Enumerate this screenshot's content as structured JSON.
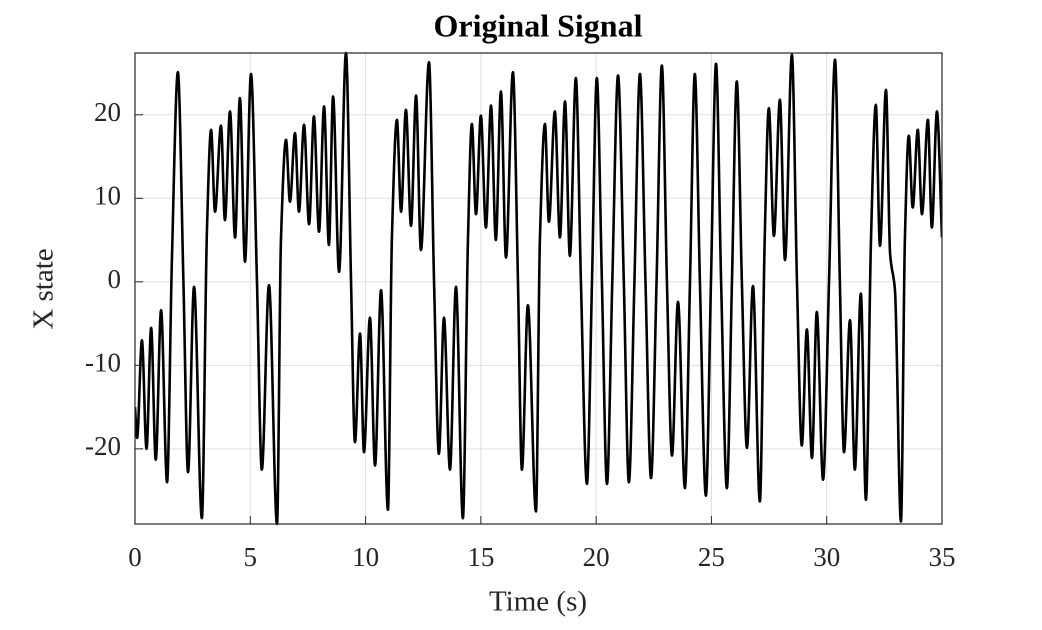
{
  "chart_data": {
    "type": "line",
    "title": "Original Signal",
    "x_label": "Time (s)",
    "y_label": "X state",
    "xlim": [
      0,
      35
    ],
    "ylim": [
      -29,
      27.4
    ],
    "xticks": [
      0,
      5,
      10,
      15,
      20,
      25,
      30,
      35
    ],
    "yticks": [
      -20,
      -10,
      0,
      10,
      20
    ],
    "grid": true,
    "color": "#000000",
    "x": [
      0,
      0.09,
      0.3,
      0.5,
      0.7,
      0.9,
      1.13,
      1.39,
      1.6,
      1.86,
      2.1,
      2.3,
      2.56,
      2.9,
      3.12,
      3.3,
      3.47,
      3.73,
      3.9,
      4.12,
      4.34,
      4.55,
      4.77,
      5.03,
      5.29,
      5.5,
      5.81,
      6.16,
      6.33,
      6.55,
      6.72,
      6.94,
      7.11,
      7.33,
      7.55,
      7.76,
      7.98,
      8.2,
      8.41,
      8.59,
      8.85,
      9.15,
      9.37,
      9.54,
      9.76,
      9.93,
      10.19,
      10.41,
      10.67,
      10.97,
      11.14,
      11.36,
      11.54,
      11.75,
      11.97,
      12.19,
      12.4,
      12.75,
      12.97,
      13.18,
      13.4,
      13.66,
      13.92,
      14.22,
      14.44,
      14.61,
      14.79,
      15.0,
      15.22,
      15.44,
      15.65,
      15.87,
      16.09,
      16.39,
      16.61,
      16.78,
      17.04,
      17.39,
      17.56,
      17.78,
      17.95,
      18.21,
      18.43,
      18.65,
      18.86,
      19.12,
      19.34,
      19.6,
      19.82,
      20.03,
      20.25,
      20.47,
      20.7,
      20.95,
      21.2,
      21.42,
      21.66,
      21.9,
      22.14,
      22.38,
      22.62,
      22.85,
      23.07,
      23.29,
      23.55,
      23.85,
      24.07,
      24.28,
      24.5,
      24.76,
      24.98,
      25.2,
      25.42,
      25.67,
      25.89,
      26.1,
      26.32,
      26.54,
      26.8,
      27.1,
      27.31,
      27.49,
      27.71,
      27.97,
      28.19,
      28.49,
      28.71,
      28.92,
      29.14,
      29.36,
      29.57,
      29.84,
      30.1,
      30.36,
      30.57,
      30.75,
      31.01,
      31.22,
      31.48,
      31.7,
      31.92,
      32.13,
      32.31,
      32.57,
      32.75,
      32.96,
      33.22,
      33.39,
      33.56,
      33.73,
      33.95,
      34.13,
      34.39,
      34.56,
      34.78,
      35
    ],
    "values": [
      -15,
      -18.7,
      -7,
      -20,
      -5.5,
      -21.3,
      -3.4,
      -24,
      2.6,
      25.1,
      0,
      -22.8,
      -0.6,
      -28.3,
      6.2,
      18.2,
      8.4,
      18.7,
      7.4,
      20.4,
      5.3,
      22,
      2.4,
      24.9,
      0,
      -22.5,
      -0.4,
      -29,
      5,
      17,
      9.6,
      17.8,
      8.4,
      18.8,
      6.9,
      19.8,
      6,
      21,
      4.4,
      22.2,
      1.2,
      27.4,
      0,
      -19.2,
      -6.2,
      -20.4,
      -4.3,
      -22,
      -1,
      -27.3,
      5,
      19.4,
      8.4,
      20.6,
      6.7,
      22.3,
      3.8,
      26.3,
      0,
      -20.6,
      -4.3,
      -22.5,
      -0.6,
      -28.3,
      5,
      18.9,
      8.1,
      19.9,
      6.5,
      21.1,
      5,
      22.8,
      2.9,
      25.1,
      0,
      -22.5,
      -2.8,
      -27.5,
      5,
      18.9,
      7.2,
      20.4,
      5.3,
      21.6,
      3.1,
      24.4,
      0,
      -24.2,
      0,
      24.4,
      0,
      -24.2,
      0,
      24.7,
      0,
      -24,
      0,
      24.9,
      0,
      -23.5,
      0,
      25.9,
      0,
      -20.8,
      -2.4,
      -24.7,
      0,
      24.9,
      0,
      -25.6,
      0,
      26.1,
      0,
      -24.7,
      0,
      24,
      0,
      -19.9,
      -0.5,
      -26.3,
      5,
      20.8,
      5.5,
      21.8,
      2.6,
      27.2,
      0,
      -19.6,
      -5.7,
      -21.1,
      -3.6,
      -23.7,
      0,
      26.6,
      0,
      -20.4,
      -4.6,
      -22.5,
      -1.4,
      -26.1,
      5,
      21.2,
      4.3,
      23,
      3.3,
      -1,
      -28.7,
      5,
      17.5,
      8.9,
      18.2,
      8.1,
      19.4,
      6.5,
      20.4,
      5.3
    ]
  }
}
